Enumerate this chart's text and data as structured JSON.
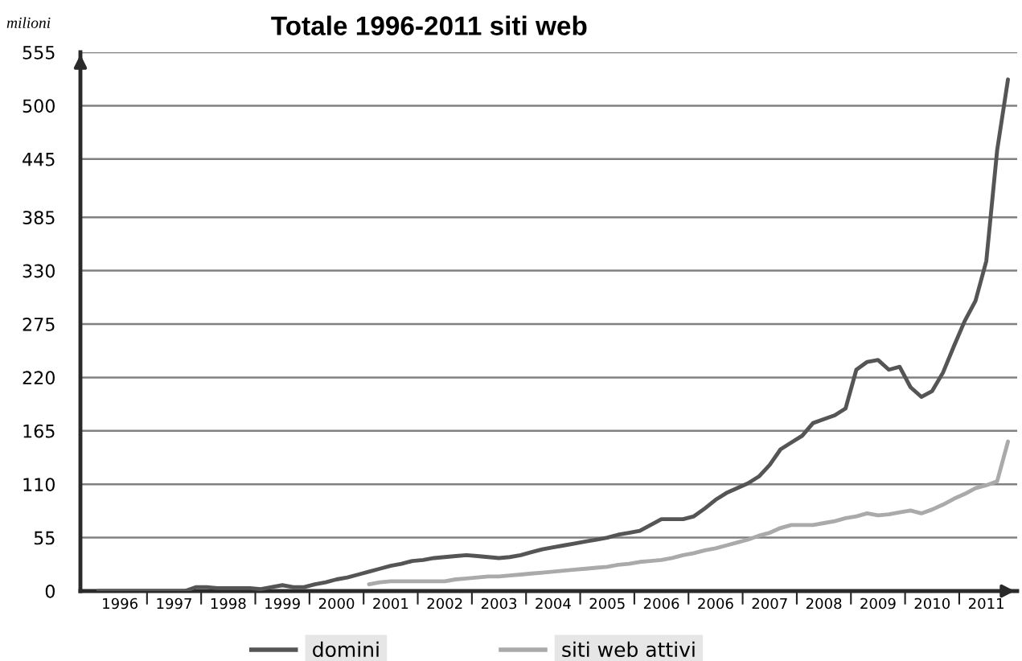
{
  "chart_data": {
    "type": "line",
    "title": "Totale 1996-2011 siti web",
    "ylabel": "milioni",
    "categories": [
      null,
      null,
      "1996",
      null,
      null,
      null,
      null,
      "1997",
      null,
      null,
      null,
      null,
      "1998",
      null,
      null,
      null,
      null,
      "1999",
      null,
      null,
      null,
      null,
      "2000",
      null,
      null,
      null,
      null,
      "2001",
      null,
      null,
      null,
      null,
      "2002",
      null,
      null,
      null,
      null,
      "2003",
      null,
      null,
      null,
      null,
      "2004",
      null,
      null,
      null,
      null,
      "2005",
      null,
      null,
      null,
      null,
      "2006",
      null,
      null,
      null,
      null,
      "2006",
      null,
      null,
      null,
      null,
      "2007",
      null,
      null,
      null,
      null,
      "2008",
      null,
      null,
      null,
      null,
      "2009",
      null,
      null,
      null,
      null,
      "2010",
      null,
      null,
      null,
      null,
      "2011",
      null,
      null
    ],
    "ylim": [
      0,
      555
    ],
    "yticks": [
      0,
      55,
      110,
      165,
      220,
      275,
      330,
      385,
      445,
      500,
      555
    ],
    "grid": "y",
    "legend": "bottom",
    "marker": "none",
    "line_style": "solid",
    "series": [
      {
        "name": "domini",
        "color": "#555555",
        "values": [
          0,
          0,
          0,
          0,
          0,
          0,
          0,
          0,
          0,
          4,
          4,
          3,
          3,
          3,
          3,
          2,
          4,
          6,
          4,
          4,
          7,
          9,
          12,
          14,
          17,
          20,
          23,
          26,
          28,
          31,
          32,
          34,
          35,
          36,
          37,
          36,
          35,
          34,
          35,
          37,
          40,
          43,
          45,
          47,
          49,
          51,
          53,
          55,
          58,
          60,
          62,
          68,
          74,
          74,
          74,
          77,
          85,
          94,
          101,
          106,
          111,
          118,
          130,
          146,
          153,
          160,
          173,
          177,
          181,
          188,
          228,
          236,
          238,
          228,
          231,
          210,
          200,
          206,
          225,
          252,
          278,
          299,
          340,
          454,
          527
        ]
      },
      {
        "name": "siti web attivi",
        "color": "#aaaaaa",
        "values": [
          null,
          null,
          null,
          null,
          null,
          null,
          null,
          null,
          null,
          null,
          null,
          null,
          null,
          null,
          null,
          null,
          null,
          null,
          null,
          null,
          null,
          null,
          null,
          null,
          null,
          7,
          9,
          10,
          10,
          10,
          10,
          10,
          10,
          12,
          13,
          14,
          15,
          15,
          16,
          17,
          18,
          19,
          20,
          21,
          22,
          23,
          24,
          25,
          27,
          28,
          30,
          31,
          32,
          34,
          37,
          39,
          42,
          44,
          47,
          50,
          53,
          57,
          60,
          65,
          68,
          68,
          68,
          70,
          72,
          75,
          77,
          80,
          78,
          79,
          81,
          83,
          80,
          84,
          89,
          95,
          100,
          106,
          109,
          113,
          154
        ]
      }
    ]
  }
}
